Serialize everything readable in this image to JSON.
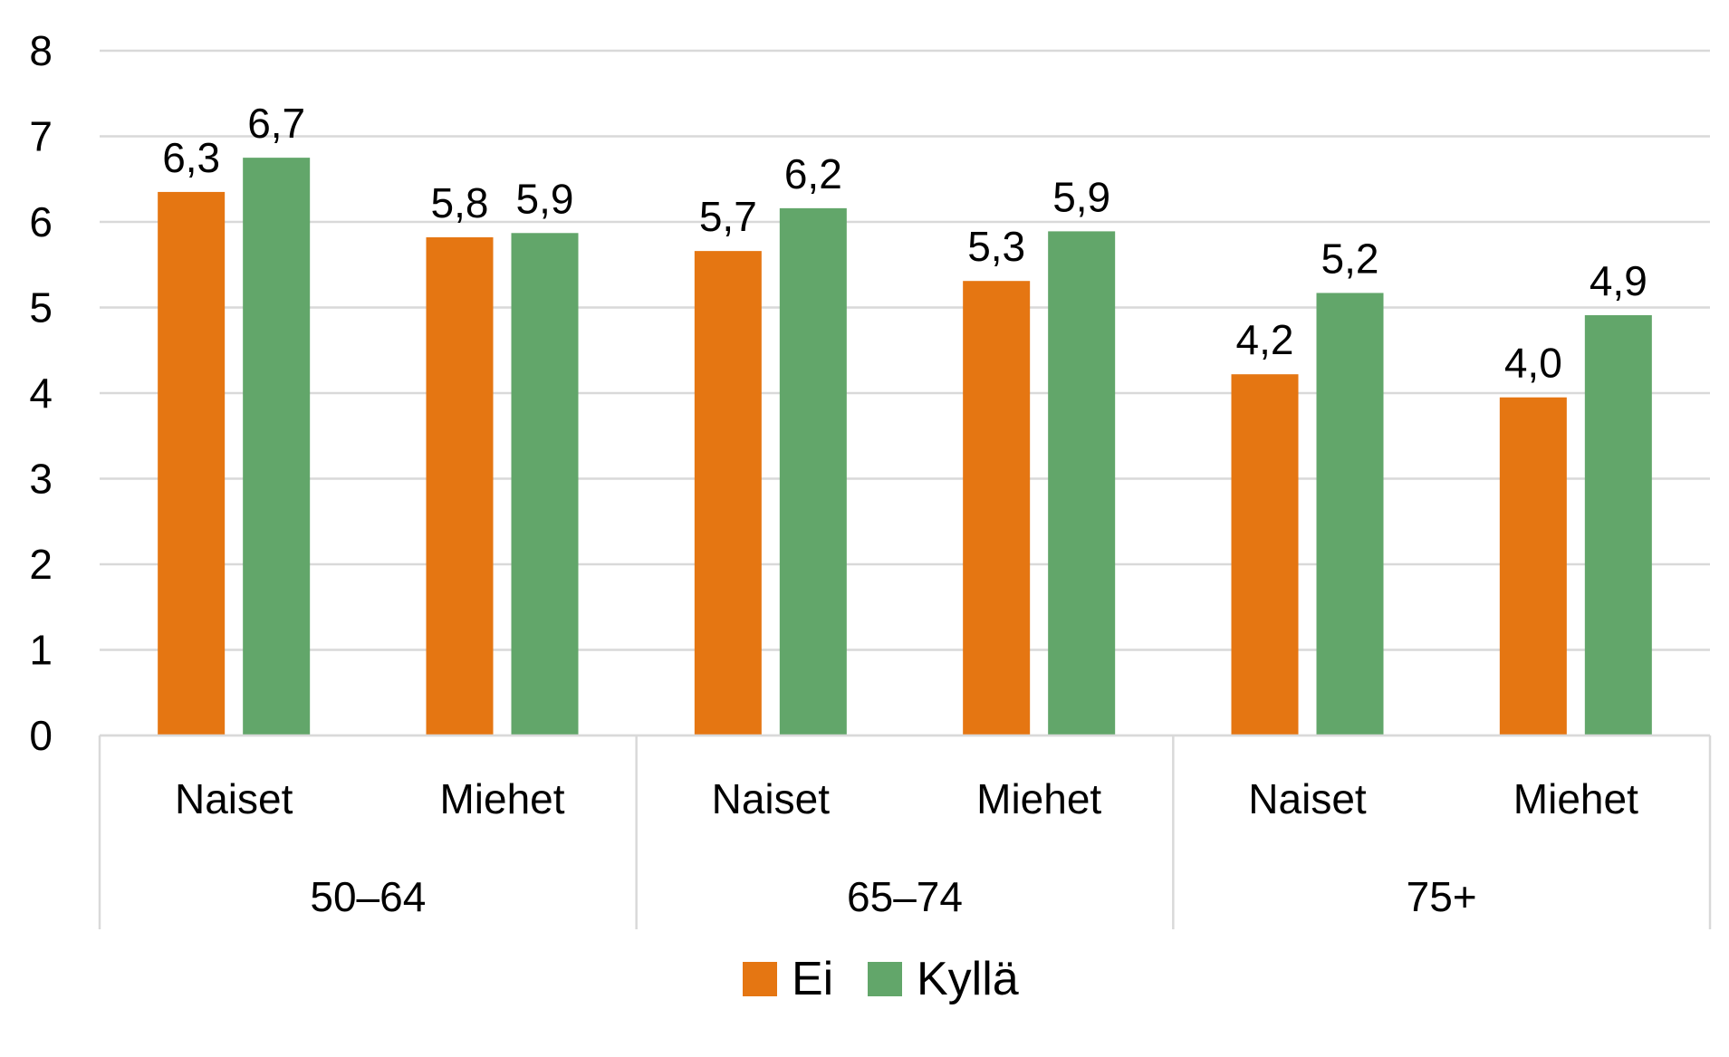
{
  "chart_data": {
    "type": "bar",
    "title": "",
    "xlabel": "",
    "ylabel": "",
    "ylim": [
      0,
      8
    ],
    "yticks": [
      "0",
      "1",
      "2",
      "3",
      "4",
      "5",
      "6",
      "7",
      "8"
    ],
    "grid": true,
    "legend_position": "bottom",
    "groups": [
      {
        "label": "50–64",
        "categories": [
          "Naiset",
          "Miehet"
        ]
      },
      {
        "label": "65–74",
        "categories": [
          "Naiset",
          "Miehet"
        ]
      },
      {
        "label": "75+",
        "categories": [
          "Naiset",
          "Miehet"
        ]
      }
    ],
    "categories": [
      "Naiset",
      "Miehet",
      "Naiset",
      "Miehet",
      "Naiset",
      "Miehet"
    ],
    "series": [
      {
        "name": "Ei",
        "color": "#E57612",
        "values": [
          6.35,
          5.82,
          5.66,
          5.31,
          4.22,
          3.95
        ],
        "labels": [
          "6,3",
          "5,8",
          "5,7",
          "5,3",
          "4,2",
          "4,0"
        ]
      },
      {
        "name": "Kyllä",
        "color": "#62A66A",
        "values": [
          6.75,
          5.87,
          6.16,
          5.89,
          5.17,
          4.91
        ],
        "labels": [
          "6,7",
          "5,9",
          "6,2",
          "5,9",
          "5,2",
          "4,9"
        ]
      }
    ]
  }
}
